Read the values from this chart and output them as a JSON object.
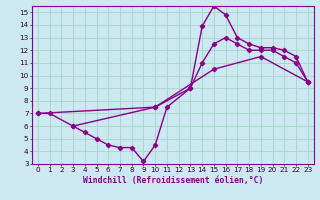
{
  "xlabel": "Windchill (Refroidissement éolien,°C)",
  "bg_color": "#cce8f0",
  "grid_color": "#aad4cc",
  "line_color": "#880088",
  "xlim": [
    -0.5,
    23.5
  ],
  "ylim": [
    3,
    15.5
  ],
  "xticks": [
    0,
    1,
    2,
    3,
    4,
    5,
    6,
    7,
    8,
    9,
    10,
    11,
    12,
    13,
    14,
    15,
    16,
    17,
    18,
    19,
    20,
    21,
    22,
    23
  ],
  "yticks": [
    3,
    4,
    5,
    6,
    7,
    8,
    9,
    10,
    11,
    12,
    13,
    14,
    15
  ],
  "marker": "D",
  "markersize": 2.2,
  "linewidth": 1.0,
  "series": [
    {
      "x": [
        0,
        1,
        3,
        4,
        5,
        6,
        7,
        8,
        9,
        10,
        11,
        13,
        14,
        15,
        16,
        17,
        18,
        19,
        20,
        21,
        22,
        23
      ],
      "y": [
        7,
        7,
        6,
        5.5,
        5,
        4.5,
        4.3,
        4.3,
        3.2,
        4.5,
        7.5,
        9.0,
        13.9,
        15.5,
        14.8,
        13.0,
        12.5,
        12.2,
        12.2,
        12.0,
        11.5,
        9.5
      ]
    },
    {
      "x": [
        0,
        10,
        15,
        19,
        23
      ],
      "y": [
        7,
        7.5,
        10.5,
        11.5,
        9.5
      ]
    },
    {
      "x": [
        3,
        10,
        13,
        14,
        15,
        16,
        17,
        18,
        19,
        20,
        21,
        22,
        23
      ],
      "y": [
        6,
        7.5,
        9.0,
        11.0,
        12.5,
        13.0,
        12.5,
        12.0,
        12.0,
        12.0,
        11.5,
        11.0,
        9.5
      ]
    }
  ]
}
